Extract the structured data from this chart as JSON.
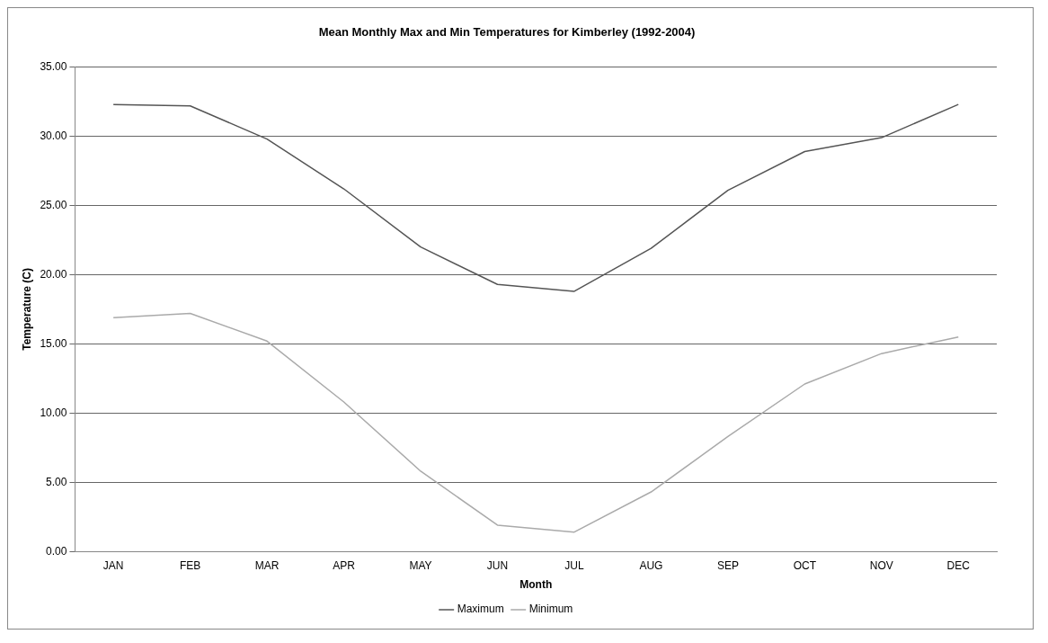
{
  "chart_data": {
    "type": "line",
    "title": "Mean Monthly Max and Min Temperatures for Kimberley (1992-2004)",
    "xlabel": "Month",
    "ylabel": "Temperature (C)",
    "categories": [
      "JAN",
      "FEB",
      "MAR",
      "APR",
      "MAY",
      "JUN",
      "JUL",
      "AUG",
      "SEP",
      "OCT",
      "NOV",
      "DEC"
    ],
    "series": [
      {
        "name": "Maximum",
        "color": "#555555",
        "values": [
          32.3,
          32.2,
          29.8,
          26.2,
          22.0,
          19.3,
          18.8,
          21.9,
          26.1,
          28.9,
          29.9,
          32.3
        ]
      },
      {
        "name": "Minimum",
        "color": "#aaaaaa",
        "values": [
          16.9,
          17.2,
          15.2,
          10.8,
          5.8,
          1.9,
          1.4,
          4.3,
          8.3,
          12.1,
          14.3,
          15.5
        ]
      }
    ],
    "ylim": [
      0,
      35
    ],
    "yticks": [
      {
        "value": 0,
        "label": "0.00"
      },
      {
        "value": 5,
        "label": "5.00"
      },
      {
        "value": 10,
        "label": "10.00"
      },
      {
        "value": 15,
        "label": "15.00"
      },
      {
        "value": 20,
        "label": "20.00"
      },
      {
        "value": 25,
        "label": "25.00"
      },
      {
        "value": 30,
        "label": "30.00"
      },
      {
        "value": 35,
        "label": "35.00"
      }
    ],
    "grid": "y",
    "legend": "bottom",
    "marker": "none",
    "line_style": "solid"
  }
}
